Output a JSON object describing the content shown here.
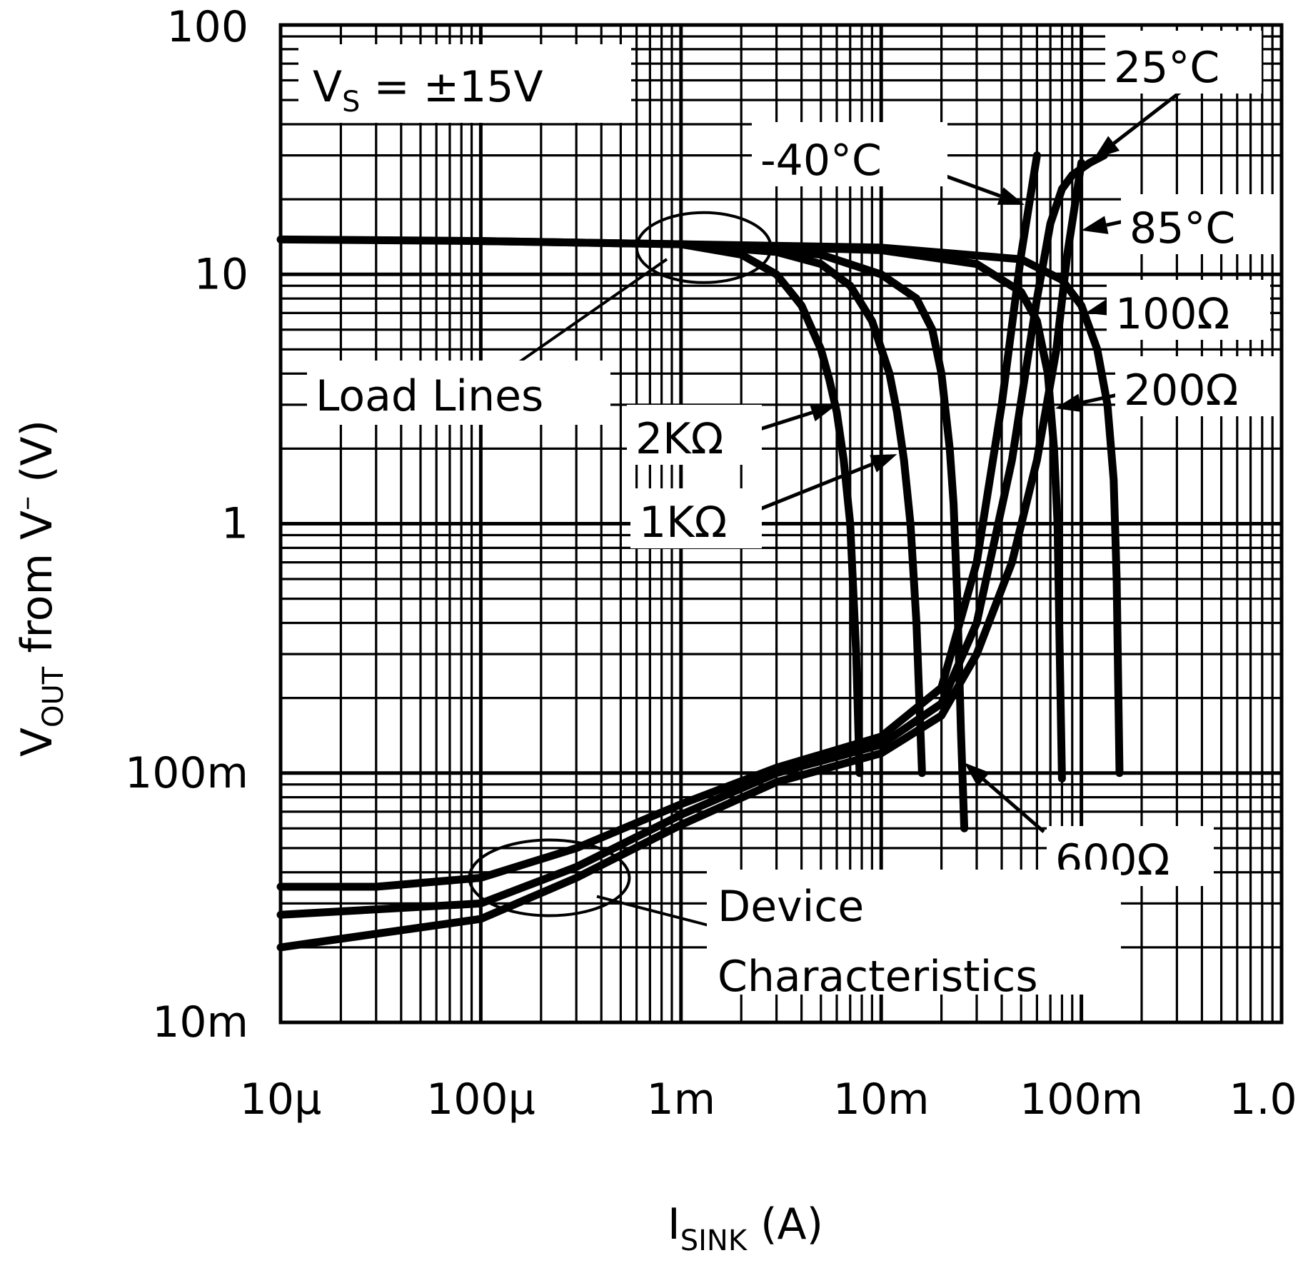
{
  "chart_data": {
    "type": "line",
    "x_scale": "log",
    "y_scale": "log",
    "xlim": [
      1e-05,
      1.0
    ],
    "ylim": [
      0.01,
      100
    ],
    "grid": true,
    "x_ticks": [
      {
        "value": 1e-05,
        "label": "10μ"
      },
      {
        "value": 0.0001,
        "label": "100μ"
      },
      {
        "value": 0.001,
        "label": "1m"
      },
      {
        "value": 0.01,
        "label": "10m"
      },
      {
        "value": 0.1,
        "label": "100m"
      },
      {
        "value": 1.0,
        "label": "1.0"
      }
    ],
    "y_ticks": [
      {
        "value": 100,
        "label": "100"
      },
      {
        "value": 10,
        "label": "10"
      },
      {
        "value": 1,
        "label": "1"
      },
      {
        "value": 0.1,
        "label": "100m"
      },
      {
        "value": 0.01,
        "label": "10m"
      }
    ],
    "xlabel": {
      "main": "I",
      "sub": "SINK",
      "rest": " (A)"
    },
    "ylabel": {
      "main": "V",
      "sub": "OUT",
      "rest1": " from V",
      "sup": "–",
      "rest2": " (V)"
    },
    "condition": {
      "main": "V",
      "sub": "S",
      "rest": " = ±15V"
    },
    "group_labels": {
      "load_lines": "Load Lines",
      "device_line1": "Device",
      "device_line2": "Characteristics"
    },
    "series": [
      {
        "name": "2KΩ",
        "group": "load_lines",
        "x": [
          1e-05,
          0.0001,
          0.001,
          0.002,
          0.003,
          0.004,
          0.005,
          0.0055,
          0.006,
          0.0065,
          0.007,
          0.0075,
          0.0078
        ],
        "y": [
          13.8,
          13.6,
          13.2,
          12.0,
          10.0,
          7.5,
          5.0,
          3.8,
          2.8,
          1.8,
          1.0,
          0.3,
          0.1
        ]
      },
      {
        "name": "1KΩ",
        "group": "load_lines",
        "x": [
          0.0001,
          0.001,
          0.003,
          0.005,
          0.007,
          0.009,
          0.011,
          0.012,
          0.013,
          0.014,
          0.015,
          0.016
        ],
        "y": [
          13.6,
          13.2,
          12.3,
          11.0,
          9.0,
          6.5,
          4.0,
          2.8,
          1.8,
          1.0,
          0.4,
          0.1
        ]
      },
      {
        "name": "600Ω",
        "group": "load_lines",
        "x": [
          0.001,
          0.005,
          0.01,
          0.015,
          0.018,
          0.02,
          0.022,
          0.023,
          0.024,
          0.025,
          0.026
        ],
        "y": [
          13.2,
          12.0,
          10.0,
          8.0,
          6.0,
          4.0,
          2.0,
          1.2,
          0.5,
          0.15,
          0.06
        ]
      },
      {
        "name": "200Ω",
        "group": "load_lines",
        "x": [
          0.001,
          0.01,
          0.03,
          0.05,
          0.06,
          0.068,
          0.073,
          0.076,
          0.078,
          0.08
        ],
        "y": [
          13.2,
          12.5,
          11.0,
          8.5,
          6.5,
          4.0,
          2.0,
          1.0,
          0.3,
          0.095
        ]
      },
      {
        "name": "100Ω",
        "group": "load_lines",
        "x": [
          0.001,
          0.01,
          0.05,
          0.08,
          0.1,
          0.12,
          0.135,
          0.145,
          0.15,
          0.155
        ],
        "y": [
          13.2,
          12.8,
          11.5,
          9.5,
          7.5,
          5.0,
          3.0,
          1.5,
          0.6,
          0.1
        ]
      },
      {
        "name": "-40°C",
        "group": "device",
        "x": [
          1e-05,
          3e-05,
          0.0001,
          0.0003,
          0.001,
          0.003,
          0.01,
          0.02,
          0.03,
          0.04,
          0.05,
          0.06
        ],
        "y": [
          0.035,
          0.035,
          0.038,
          0.05,
          0.075,
          0.105,
          0.14,
          0.22,
          0.7,
          3.0,
          12.0,
          30.0
        ]
      },
      {
        "name": "25°C",
        "group": "device",
        "x": [
          1e-05,
          0.0001,
          0.0003,
          0.001,
          0.003,
          0.01,
          0.02,
          0.03,
          0.045,
          0.06,
          0.07,
          0.08,
          0.09,
          0.11,
          0.13
        ],
        "y": [
          0.027,
          0.03,
          0.042,
          0.068,
          0.1,
          0.13,
          0.19,
          0.4,
          1.8,
          8.0,
          16.0,
          22.0,
          25.0,
          28.0,
          30.0
        ]
      },
      {
        "name": "85°C",
        "group": "device",
        "x": [
          1e-05,
          0.0001,
          0.0003,
          0.001,
          0.003,
          0.01,
          0.02,
          0.03,
          0.045,
          0.06,
          0.075,
          0.085,
          0.1
        ],
        "y": [
          0.02,
          0.026,
          0.038,
          0.062,
          0.092,
          0.12,
          0.17,
          0.3,
          0.7,
          1.8,
          5.0,
          12.0,
          28.0
        ]
      }
    ],
    "annotations": [
      {
        "text": "25°C",
        "arrow_to": [
          0.115,
          29.0
        ]
      },
      {
        "text": "-40°C",
        "arrow_to": [
          0.052,
          19.0
        ]
      },
      {
        "text": "85°C",
        "arrow_to": [
          0.1,
          15.0
        ]
      },
      {
        "text": "100Ω",
        "arrow_to": [
          0.105,
          7.0
        ]
      },
      {
        "text": "200Ω",
        "arrow_to": [
          0.074,
          2.9
        ]
      },
      {
        "text": "2KΩ",
        "arrow_to": [
          0.006,
          3.0
        ]
      },
      {
        "text": "1KΩ",
        "arrow_to": [
          0.012,
          1.9
        ]
      },
      {
        "text": "600Ω",
        "arrow_to": [
          0.026,
          0.11
        ]
      }
    ]
  }
}
